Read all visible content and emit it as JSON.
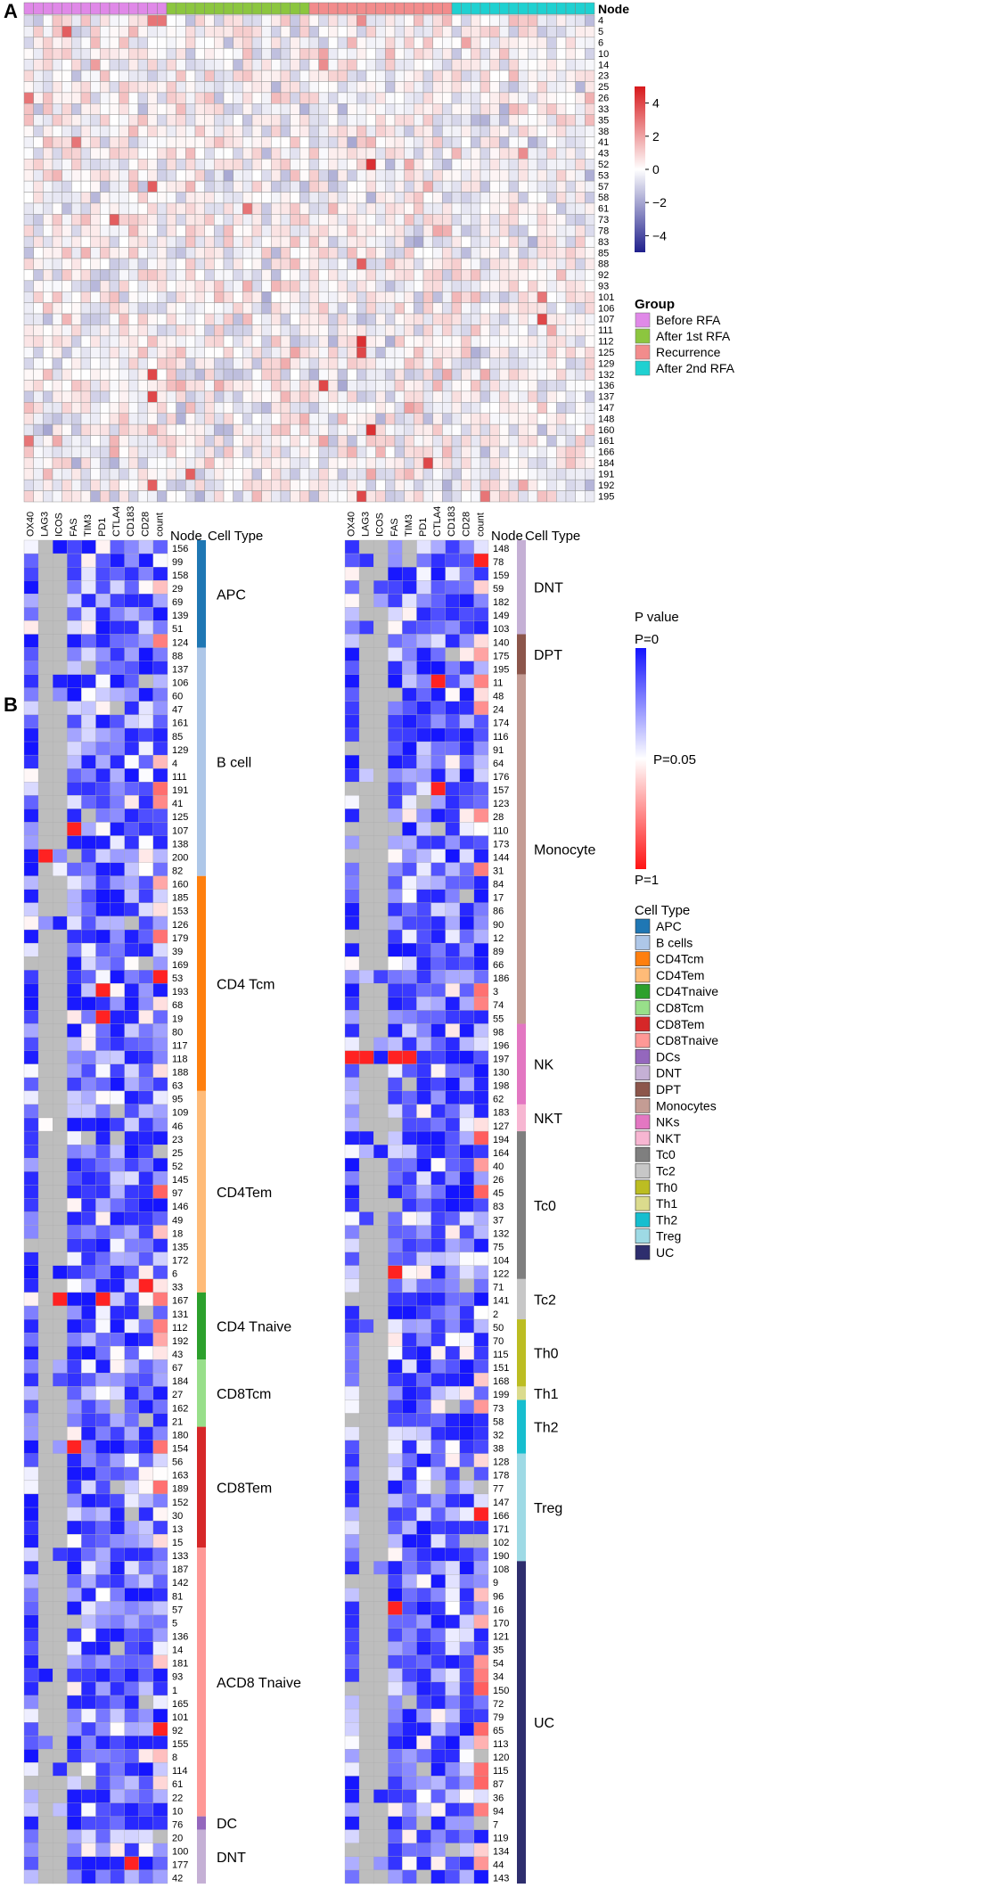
{
  "colors": {
    "before_rfa": "#E089E8",
    "after_1st_rfa": "#8CC63F",
    "recurrence": "#F28C8C",
    "after_2nd_rfa": "#1FD1D1",
    "na_gray": "#BDBDBD",
    "zscore_low": "#1F1F8C",
    "zscore_mid": "#FFFFFF",
    "zscore_high": "#D7191C",
    "p_low": "#1414FF",
    "p_mid": "#FFFFFF",
    "p_high": "#FF1414",
    "grid": "#999999"
  },
  "chart_data": [
    {
      "panel": "A",
      "type": "heatmap",
      "title": "",
      "column_annotation_title": "Node",
      "groups": [
        {
          "name": "Before RFA",
          "count": 15,
          "color": "#E089E8"
        },
        {
          "name": "After 1st RFA",
          "count": 15,
          "color": "#8CC63F"
        },
        {
          "name": "Recurrence",
          "count": 15,
          "color": "#F28C8C"
        },
        {
          "name": "After 2nd RFA",
          "count": 15,
          "color": "#1FD1D1"
        }
      ],
      "group_legend_title": "Group",
      "rows": [
        "4",
        "5",
        "6",
        "10",
        "14",
        "23",
        "25",
        "26",
        "33",
        "35",
        "38",
        "41",
        "43",
        "52",
        "53",
        "57",
        "58",
        "61",
        "73",
        "78",
        "83",
        "85",
        "88",
        "92",
        "93",
        "101",
        "106",
        "107",
        "111",
        "112",
        "125",
        "129",
        "132",
        "136",
        "137",
        "147",
        "148",
        "160",
        "161",
        "166",
        "184",
        "191",
        "192",
        "195"
      ],
      "value_range": [
        -5,
        5
      ],
      "colorbar_ticks": [
        "4",
        "2",
        "0",
        "−2",
        "−4"
      ],
      "colorbar_tick_values": [
        4,
        2,
        0,
        -2,
        -4
      ],
      "highlights": [
        {
          "row": "4",
          "col": 13,
          "value": 3
        },
        {
          "row": "4",
          "col": 14,
          "value": 3
        },
        {
          "row": "4",
          "col": 35,
          "value": 2.5
        },
        {
          "row": "5",
          "col": 4,
          "value": 3.5
        },
        {
          "row": "6",
          "col": 46,
          "value": 2
        },
        {
          "row": "10",
          "col": 31,
          "value": 2
        },
        {
          "row": "14",
          "col": 31,
          "value": 2.5
        },
        {
          "row": "26",
          "col": 0,
          "value": 3
        },
        {
          "row": "41",
          "col": 5,
          "value": 3
        },
        {
          "row": "52",
          "col": 36,
          "value": 4.5
        },
        {
          "row": "57",
          "col": 13,
          "value": 3.5
        },
        {
          "row": "61",
          "col": 23,
          "value": 3
        },
        {
          "row": "73",
          "col": 9,
          "value": 3.5
        },
        {
          "row": "88",
          "col": 35,
          "value": 3.5
        },
        {
          "row": "101",
          "col": 54,
          "value": 3
        },
        {
          "row": "107",
          "col": 54,
          "value": 4
        },
        {
          "row": "112",
          "col": 35,
          "value": 4.5
        },
        {
          "row": "125",
          "col": 35,
          "value": 4
        },
        {
          "row": "132",
          "col": 13,
          "value": 4
        },
        {
          "row": "136",
          "col": 31,
          "value": 4
        },
        {
          "row": "137",
          "col": 13,
          "value": 4
        },
        {
          "row": "160",
          "col": 36,
          "value": 4.5
        },
        {
          "row": "184",
          "col": 42,
          "value": 4
        },
        {
          "row": "191",
          "col": 17,
          "value": 3.5
        },
        {
          "row": "192",
          "col": 13,
          "value": 3.5
        },
        {
          "row": "195",
          "col": 35,
          "value": 4
        },
        {
          "row": "195",
          "col": 48,
          "value": 3
        },
        {
          "row": "161",
          "col": 0,
          "value": 3
        },
        {
          "row": "43",
          "col": 52,
          "value": 2.5
        }
      ]
    },
    {
      "panel": "B",
      "type": "heatmap",
      "columns": [
        "OX40",
        "LAG3",
        "ICOS",
        "FAS",
        "TIM3",
        "PD1",
        "CTLA4",
        "CD183",
        "CD28",
        "count"
      ],
      "row_annotation_title": "Node",
      "cell_type_title": "Cell Type",
      "left": {
        "nodes": [
          "156",
          "99",
          "158",
          "29",
          "69",
          "139",
          "51",
          "124",
          "88",
          "137",
          "106",
          "60",
          "47",
          "161",
          "85",
          "129",
          "4",
          "111",
          "191",
          "41",
          "125",
          "107",
          "138",
          "200",
          "82",
          "160",
          "185",
          "153",
          "126",
          "179",
          "39",
          "169",
          "53",
          "193",
          "68",
          "19",
          "80",
          "117",
          "118",
          "188",
          "63",
          "95",
          "109",
          "46",
          "23",
          "25",
          "52",
          "145",
          "97",
          "146",
          "49",
          "18",
          "135",
          "172",
          "6",
          "33",
          "167",
          "131",
          "112",
          "192",
          "43",
          "67",
          "184",
          "27",
          "162",
          "21",
          "180",
          "154",
          "56",
          "163",
          "189",
          "152",
          "30",
          "13",
          "15",
          "133",
          "187",
          "142",
          "81",
          "57",
          "5",
          "136",
          "14",
          "181",
          "93",
          "1",
          "165",
          "101",
          "92",
          "155",
          "8",
          "114",
          "61",
          "22",
          "10",
          "76",
          "20",
          "100",
          "177",
          "42"
        ],
        "cell_types": [
          {
            "label": "APC",
            "count": 8,
            "color": "#1F77B4"
          },
          {
            "label": "B cell",
            "count": 17,
            "color": "#AEC7E8"
          },
          {
            "label": "CD4 Tcm",
            "count": 16,
            "color": "#FF7F0E"
          },
          {
            "label": "CD4Tem",
            "count": 15,
            "color": "#FFBB78"
          },
          {
            "label": "CD4 Tnaive",
            "count": 5,
            "color": "#2CA02C"
          },
          {
            "label": "CD8Tcm",
            "count": 5,
            "color": "#98DF8A"
          },
          {
            "label": "CD8Tem",
            "count": 9,
            "color": "#D62728"
          },
          {
            "label": "ACD8 Tnaive",
            "count": 20,
            "color": "#FF9896"
          },
          {
            "label": "DC",
            "count": 1,
            "color": "#9467BD"
          },
          {
            "label": "DNT",
            "count": 4,
            "color": "#C5B0D5"
          }
        ]
      },
      "right": {
        "nodes": [
          "148",
          "78",
          "159",
          "59",
          "182",
          "149",
          "103",
          "140",
          "175",
          "195",
          "11",
          "48",
          "24",
          "174",
          "116",
          "91",
          "64",
          "176",
          "157",
          "123",
          "28",
          "110",
          "173",
          "144",
          "31",
          "84",
          "17",
          "86",
          "90",
          "12",
          "89",
          "66",
          "186",
          "3",
          "74",
          "55",
          "98",
          "196",
          "197",
          "130",
          "198",
          "62",
          "183",
          "127",
          "194",
          "164",
          "40",
          "26",
          "45",
          "83",
          "37",
          "132",
          "75",
          "104",
          "122",
          "71",
          "141",
          "2",
          "50",
          "70",
          "115",
          "151",
          "168",
          "199",
          "73",
          "58",
          "32",
          "38",
          "128",
          "178",
          "77",
          "147",
          "166",
          "171",
          "102",
          "190",
          "108",
          "9",
          "96",
          "16",
          "170",
          "121",
          "35",
          "54",
          "34",
          "150",
          "72",
          "79",
          "65",
          "113",
          "120",
          "115",
          "87",
          "36",
          "94",
          "7",
          "119",
          "134",
          "44",
          "143"
        ],
        "cell_types": [
          {
            "label": "DNT",
            "count": 7,
            "color": "#C5B0D5"
          },
          {
            "label": "DPT",
            "count": 3,
            "color": "#8C564B"
          },
          {
            "label": "Monocyte",
            "count": 26,
            "color": "#C49C94"
          },
          {
            "label": "NK",
            "count": 6,
            "color": "#E377C2"
          },
          {
            "label": "NKT",
            "count": 2,
            "color": "#F7B6D2"
          },
          {
            "label": "Tc0",
            "count": 11,
            "color": "#7F7F7F"
          },
          {
            "label": "Tc2",
            "count": 3,
            "color": "#C7C7C7"
          },
          {
            "label": "Th0",
            "count": 5,
            "color": "#BCBD22"
          },
          {
            "label": "Th1",
            "count": 1,
            "color": "#DBDB8D"
          },
          {
            "label": "Th2",
            "count": 4,
            "color": "#17BECF"
          },
          {
            "label": "Treg",
            "count": 8,
            "color": "#9EDAE5"
          },
          {
            "label": "UC",
            "count": 24,
            "color": "#2E2E6E"
          }
        ]
      },
      "p_value_legend": {
        "title": "P value",
        "top": "P=0",
        "middle": "P=0.05",
        "bottom": "P=1"
      },
      "cell_type_legend": {
        "title": "Cell Type",
        "entries": [
          {
            "label": "APC",
            "color": "#1F77B4"
          },
          {
            "label": "B cells",
            "color": "#AEC7E8"
          },
          {
            "label": "CD4Tcm",
            "color": "#FF7F0E"
          },
          {
            "label": "CD4Tem",
            "color": "#FFBB78"
          },
          {
            "label": "CD4Tnaive",
            "color": "#2CA02C"
          },
          {
            "label": "CD8Tcm",
            "color": "#98DF8A"
          },
          {
            "label": "CD8Tem",
            "color": "#D62728"
          },
          {
            "label": "CD8Tnaive",
            "color": "#FF9896"
          },
          {
            "label": "DCs",
            "color": "#9467BD"
          },
          {
            "label": "DNT",
            "color": "#C5B0D5"
          },
          {
            "label": "DPT",
            "color": "#8C564B"
          },
          {
            "label": "Monocytes",
            "color": "#C49C94"
          },
          {
            "label": "NKs",
            "color": "#E377C2"
          },
          {
            "label": "NKT",
            "color": "#F7B6D2"
          },
          {
            "label": "Tc0",
            "color": "#7F7F7F"
          },
          {
            "label": "Tc2",
            "color": "#C7C7C7"
          },
          {
            "label": "Th0",
            "color": "#BCBD22"
          },
          {
            "label": "Th1",
            "color": "#DBDB8D"
          },
          {
            "label": "Th2",
            "color": "#17BECF"
          },
          {
            "label": "Treg",
            "color": "#9EDAE5"
          },
          {
            "label": "UC",
            "color": "#2E2E6E"
          }
        ]
      },
      "hot_cells": [
        {
          "side": "left",
          "row": "200",
          "col": "LAG3"
        },
        {
          "side": "left",
          "row": "107",
          "col": "FAS"
        },
        {
          "side": "left",
          "row": "53",
          "col": "count"
        },
        {
          "side": "left",
          "row": "19",
          "col": "PD1"
        },
        {
          "side": "left",
          "row": "193",
          "col": "PD1"
        },
        {
          "side": "left",
          "row": "167",
          "col": "ICOS"
        },
        {
          "side": "left",
          "row": "167",
          "col": "PD1"
        },
        {
          "side": "left",
          "row": "154",
          "col": "FAS"
        },
        {
          "side": "left",
          "row": "92",
          "col": "count"
        },
        {
          "side": "left",
          "row": "177",
          "col": "CD183"
        },
        {
          "side": "left",
          "row": "33",
          "col": "CD28"
        },
        {
          "side": "right",
          "row": "197",
          "col": "OX40"
        },
        {
          "side": "right",
          "row": "197",
          "col": "LAG3"
        },
        {
          "side": "right",
          "row": "197",
          "col": "FAS"
        },
        {
          "side": "right",
          "row": "197",
          "col": "TIM3"
        },
        {
          "side": "right",
          "row": "11",
          "col": "CTLA4"
        },
        {
          "side": "right",
          "row": "157",
          "col": "CTLA4"
        },
        {
          "side": "right",
          "row": "122",
          "col": "FAS"
        },
        {
          "side": "right",
          "row": "16",
          "col": "FAS"
        },
        {
          "side": "right",
          "row": "166",
          "col": "count"
        },
        {
          "side": "right",
          "row": "78",
          "col": "count"
        }
      ]
    }
  ],
  "panel_labels": {
    "a": "A",
    "b": "B"
  }
}
